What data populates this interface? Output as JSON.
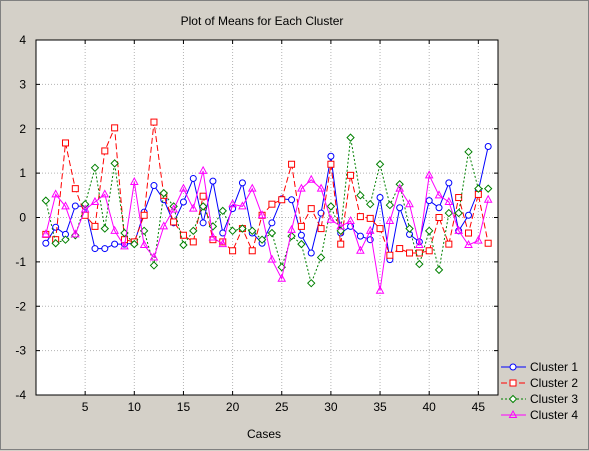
{
  "chart_data": {
    "type": "line",
    "title": "Plot of Means for Each Cluster",
    "xlabel": "Cases",
    "ylabel": "",
    "xlim": [
      0,
      47
    ],
    "ylim": [
      -4,
      4
    ],
    "xticks": [
      5,
      10,
      15,
      20,
      25,
      30,
      35,
      40,
      45
    ],
    "yticks": [
      -4,
      -3,
      -2,
      -1,
      0,
      1,
      2,
      3,
      4
    ],
    "grid": true,
    "legend_position": "bottom-right",
    "x": [
      1,
      2,
      3,
      4,
      5,
      6,
      7,
      8,
      9,
      10,
      11,
      12,
      13,
      14,
      15,
      16,
      17,
      18,
      19,
      20,
      21,
      22,
      23,
      24,
      25,
      26,
      27,
      28,
      29,
      30,
      31,
      32,
      33,
      34,
      35,
      36,
      37,
      38,
      39,
      40,
      41,
      42,
      43,
      44,
      45,
      46
    ],
    "series": [
      {
        "name": "Cluster  1",
        "color": "#0000ff",
        "dash": "solid",
        "marker": "circle",
        "values": [
          -0.58,
          -0.22,
          -0.38,
          0.26,
          0.25,
          -0.7,
          -0.7,
          -0.6,
          -0.6,
          -0.58,
          0.12,
          0.72,
          0.4,
          -0.12,
          0.35,
          0.88,
          -0.12,
          0.82,
          -0.35,
          0.2,
          0.78,
          -0.35,
          -0.58,
          -0.12,
          0.42,
          0.4,
          -0.4,
          -0.8,
          0.1,
          1.38,
          -0.35,
          -0.2,
          -0.42,
          -0.5,
          0.45,
          -0.95,
          0.22,
          -0.38,
          -0.55,
          0.38,
          0.22,
          0.78,
          -0.3,
          0.05,
          0.6,
          1.6
        ]
      },
      {
        "name": "Cluster  2",
        "color": "#ff0000",
        "dash": "dashed",
        "marker": "square",
        "values": [
          -0.38,
          -0.5,
          1.68,
          0.65,
          0.05,
          -0.2,
          1.5,
          2.02,
          -0.5,
          -0.55,
          0.05,
          2.15,
          0.5,
          -0.1,
          -0.4,
          -0.55,
          0.48,
          -0.5,
          -0.55,
          -0.75,
          -0.25,
          -0.75,
          0.05,
          0.3,
          0.4,
          1.2,
          -0.2,
          0.2,
          -0.25,
          1.2,
          -0.6,
          0.95,
          0.02,
          -0.02,
          -0.25,
          -0.85,
          -0.7,
          -0.8,
          -0.8,
          -0.75,
          0.0,
          -0.6,
          0.45,
          -0.35,
          0.52,
          -0.58
        ]
      },
      {
        "name": "Cluster  3",
        "color": "#008000",
        "dash": "dotted",
        "marker": "diamond",
        "values": [
          0.38,
          -0.58,
          -0.5,
          -0.4,
          0.3,
          1.12,
          -0.25,
          1.22,
          -0.35,
          -0.6,
          -0.3,
          -1.08,
          0.55,
          0.25,
          -0.62,
          -0.3,
          0.25,
          -0.2,
          0.15,
          -0.3,
          -0.25,
          -0.3,
          -0.5,
          -0.35,
          -1.12,
          -0.42,
          -0.6,
          -1.48,
          -0.9,
          0.25,
          -0.3,
          1.8,
          0.5,
          0.3,
          1.2,
          0.28,
          0.75,
          -0.25,
          -1.05,
          -0.3,
          -1.18,
          0.1,
          0.1,
          1.48,
          0.65,
          0.65
        ]
      },
      {
        "name": "Cluster  4",
        "color": "#ff00ff",
        "dash": "solid",
        "marker": "triangle",
        "values": [
          -0.38,
          0.52,
          0.25,
          -0.38,
          0.18,
          0.35,
          0.52,
          -0.3,
          -0.65,
          0.8,
          -0.62,
          -0.9,
          -0.2,
          0.18,
          0.65,
          0.2,
          1.05,
          -0.45,
          -0.6,
          0.3,
          0.25,
          0.65,
          0.05,
          -0.95,
          -1.38,
          -0.28,
          0.65,
          0.85,
          0.65,
          -0.05,
          -0.2,
          -0.08,
          -0.75,
          -0.3,
          -1.65,
          -0.08,
          0.65,
          0.3,
          -0.62,
          0.95,
          0.5,
          0.35,
          -0.3,
          -0.62,
          -0.52,
          0.4
        ]
      }
    ]
  }
}
